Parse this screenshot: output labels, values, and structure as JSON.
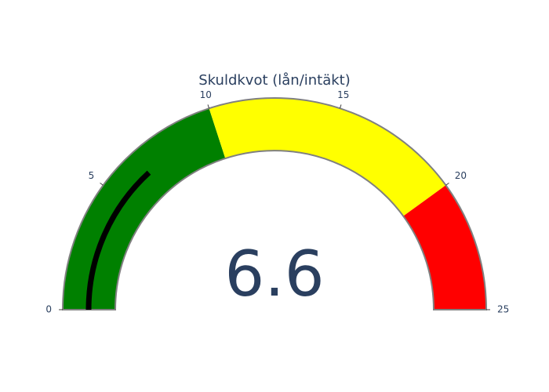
{
  "chart_data": {
    "type": "gauge",
    "title": "Skuldkvot (lån/intäkt)",
    "value": 6.6,
    "value_label": "6.6",
    "range": [
      0,
      25
    ],
    "ticks": [
      0,
      5,
      10,
      15,
      20,
      25
    ],
    "tick_labels": [
      "0",
      "5",
      "10",
      "15",
      "20",
      "25"
    ],
    "steps": [
      {
        "range": [
          0,
          10
        ],
        "color": "#008000"
      },
      {
        "range": [
          10,
          20
        ],
        "color": "#ffff00"
      },
      {
        "range": [
          20,
          25
        ],
        "color": "#ff0000"
      }
    ],
    "bar_color": "#000000",
    "border_color": "#808080",
    "text_color": "#2a3f5f"
  }
}
